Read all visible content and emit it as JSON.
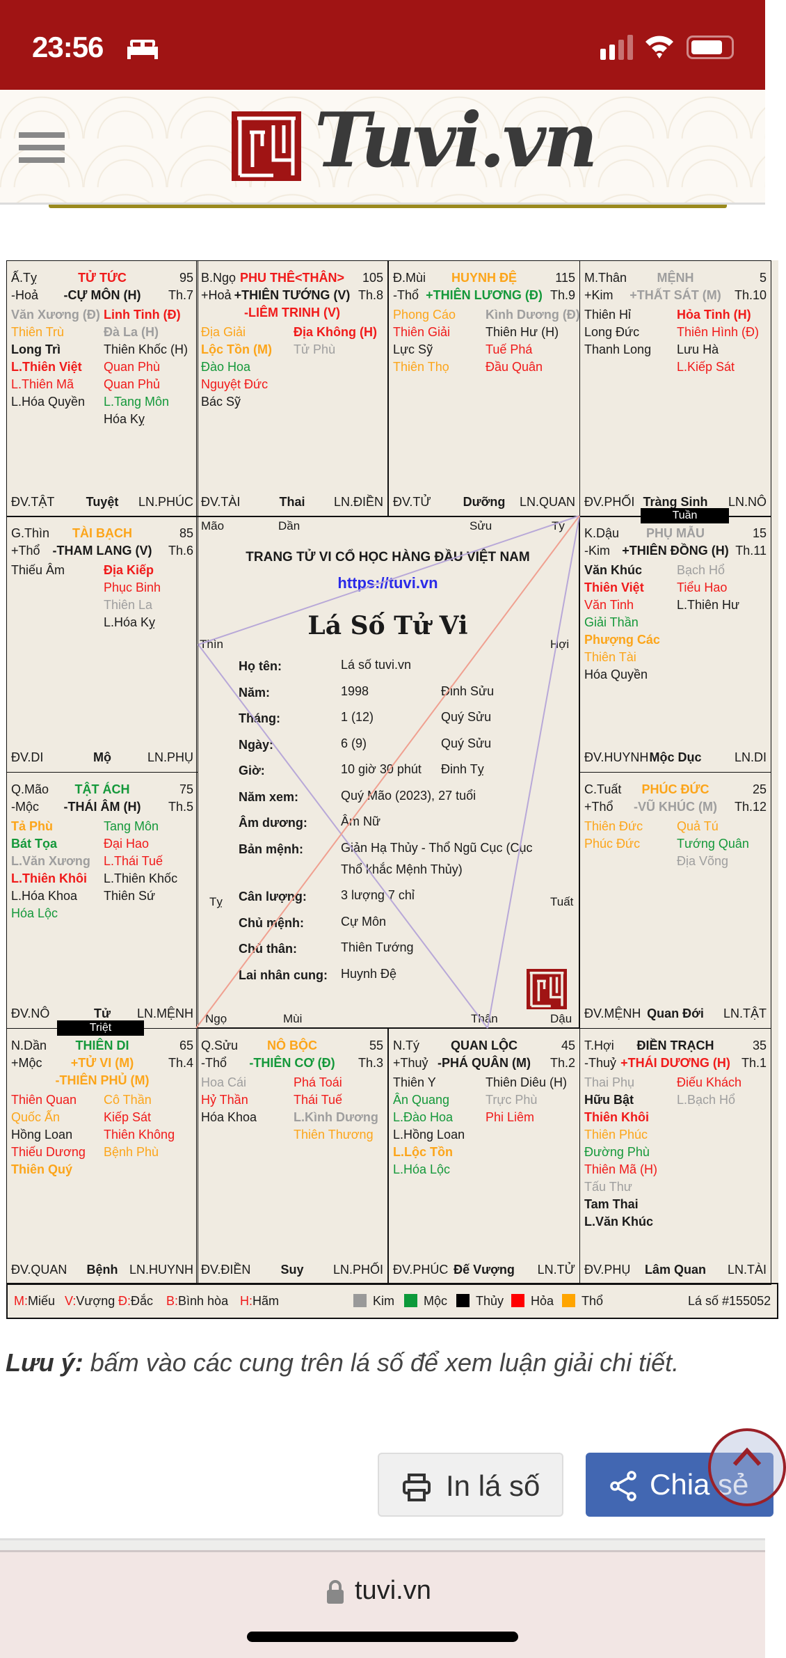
{
  "status_bar": {
    "time": "23:56"
  },
  "header": {
    "brand": "Tuvi.vn"
  },
  "colors": {
    "red": "#f01a1a",
    "orange": "#fca51a",
    "green": "#14983a",
    "gray": "#9e9e9e",
    "black": "#1a1a1a",
    "blue": "#2a2ae8",
    "brand_red": "#a01414",
    "share_blue": "#4267b2"
  },
  "palaces": [
    {
      "id": "ty-snake",
      "branch": "Ấ.Tỵ",
      "name": "TỬ TỨC",
      "name_color": "red",
      "age": "95",
      "element": "-Hoả",
      "main_stars": [
        {
          "n": "-CỰ MÔN (H)",
          "c": "black"
        }
      ],
      "month": "Th.7",
      "left": [
        {
          "n": "Văn Xương (Đ)",
          "c": "gray",
          "b": true
        },
        {
          "n": "Thiên Trù",
          "c": "orange"
        },
        {
          "n": "Long Trì",
          "c": "black",
          "b": true
        },
        {
          "n": "L.Thiên Việt",
          "c": "red",
          "b": true
        },
        {
          "n": "L.Thiên Mã",
          "c": "red"
        },
        {
          "n": "L.Hóa Quyền",
          "c": "black"
        }
      ],
      "right": [
        {
          "n": "Linh Tinh (Đ)",
          "c": "red",
          "b": true
        },
        {
          "n": "Đà La (H)",
          "c": "gray",
          "b": true
        },
        {
          "n": "Thiên Khốc (H)",
          "c": "black"
        },
        {
          "n": "Quan Phù",
          "c": "red"
        },
        {
          "n": "Quan Phủ",
          "c": "red"
        },
        {
          "n": "L.Tang Môn",
          "c": "green"
        },
        {
          "n": "Hóa Kỵ",
          "c": "black"
        }
      ],
      "dv": "ĐV.TẬT",
      "stage": "Tuyệt",
      "ln": "LN.PHÚC"
    },
    {
      "id": "ngo",
      "branch": "B.Ngọ",
      "name": "PHU THÊ<THÂN>",
      "name_color": "red",
      "age": "105",
      "element": "+Hoả",
      "main_stars": [
        {
          "n": "+THIÊN TƯỚNG (V)",
          "c": "black"
        },
        {
          "n": "-LIÊM TRINH (V)",
          "c": "red"
        }
      ],
      "month": "Th.8",
      "left": [
        {
          "n": "Địa Giải",
          "c": "orange"
        },
        {
          "n": "Lộc Tồn (M)",
          "c": "orange",
          "b": true
        },
        {
          "n": "Đào Hoa",
          "c": "green"
        },
        {
          "n": "Nguyệt Đức",
          "c": "red"
        },
        {
          "n": "Bác Sỹ",
          "c": "black"
        }
      ],
      "right": [
        {
          "n": "Địa Không (H)",
          "c": "red",
          "b": true
        },
        {
          "n": "Tử Phù",
          "c": "gray"
        }
      ],
      "dv": "ĐV.TÀI",
      "stage": "Thai",
      "ln": "LN.ĐIỀN"
    },
    {
      "id": "mui",
      "branch": "Đ.Mùi",
      "name": "HUYNH ĐỆ",
      "name_color": "orange",
      "age": "115",
      "element": "-Thổ",
      "main_stars": [
        {
          "n": "+THIÊN LƯƠNG (Đ)",
          "c": "green"
        }
      ],
      "month": "Th.9",
      "left": [
        {
          "n": "Phong Cáo",
          "c": "orange"
        },
        {
          "n": "Thiên Giải",
          "c": "red"
        },
        {
          "n": "Lực Sỹ",
          "c": "black"
        },
        {
          "n": "Thiên Thọ",
          "c": "orange"
        }
      ],
      "right": [
        {
          "n": "Kình Dương (Đ)",
          "c": "gray",
          "b": true
        },
        {
          "n": "Thiên Hư (H)",
          "c": "black"
        },
        {
          "n": "Tuế Phá",
          "c": "red"
        },
        {
          "n": "Đầu Quân",
          "c": "red"
        }
      ],
      "dv": "ĐV.TỬ",
      "stage": "Dưỡng",
      "ln": "LN.QUAN"
    },
    {
      "id": "than",
      "branch": "M.Thân",
      "name": "MỆNH",
      "name_color": "gray",
      "age": "5",
      "element": "+Kim",
      "main_stars": [
        {
          "n": "+THẤT SÁT (M)",
          "c": "gray"
        }
      ],
      "month": "Th.10",
      "left": [
        {
          "n": "Thiên Hỉ",
          "c": "black"
        },
        {
          "n": "Long Đức",
          "c": "black"
        },
        {
          "n": "Thanh Long",
          "c": "black"
        }
      ],
      "right": [
        {
          "n": "Hỏa Tinh (H)",
          "c": "red",
          "b": true
        },
        {
          "n": "Thiên Hình (Đ)",
          "c": "red"
        },
        {
          "n": "Lưu Hà",
          "c": "black"
        },
        {
          "n": "L.Kiếp Sát",
          "c": "red"
        }
      ],
      "dv": "ĐV.PHỐI",
      "stage": "Tràng Sinh",
      "ln": "LN.NÔ"
    },
    {
      "id": "thin",
      "branch": "G.Thìn",
      "name": "TÀI BẠCH",
      "name_color": "orange",
      "age": "85",
      "element": "+Thổ",
      "main_stars": [
        {
          "n": "-THAM LANG (V)",
          "c": "black"
        }
      ],
      "month": "Th.6",
      "left": [
        {
          "n": "Thiếu Âm",
          "c": "black"
        }
      ],
      "right": [
        {
          "n": "Địa Kiếp",
          "c": "red",
          "b": true
        },
        {
          "n": "Phục Binh",
          "c": "red"
        },
        {
          "n": "Thiên La",
          "c": "gray"
        },
        {
          "n": "L.Hóa Kỵ",
          "c": "black"
        }
      ],
      "dv": "ĐV.DI",
      "stage": "Mộ",
      "ln": "LN.PHỤ"
    },
    {
      "id": "dau",
      "branch": "K.Dậu",
      "name": "PHỤ MẪU",
      "name_color": "gray",
      "age": "15",
      "element": "-Kim",
      "main_stars": [
        {
          "n": "+THIÊN ĐỒNG (H)",
          "c": "black"
        }
      ],
      "month": "Th.11",
      "left": [
        {
          "n": "Văn Khúc",
          "c": "black",
          "b": true
        },
        {
          "n": "Thiên Việt",
          "c": "red",
          "b": true
        },
        {
          "n": "Văn Tinh",
          "c": "red"
        },
        {
          "n": "Giải Thần",
          "c": "green"
        },
        {
          "n": "Phượng Các",
          "c": "orange",
          "b": true
        },
        {
          "n": "Thiên Tài",
          "c": "orange"
        },
        {
          "n": "Hóa Quyền",
          "c": "black"
        }
      ],
      "right": [
        {
          "n": "Bạch Hổ",
          "c": "gray"
        },
        {
          "n": "Tiểu Hao",
          "c": "red"
        },
        {
          "n": "L.Thiên Hư",
          "c": "black"
        }
      ],
      "dv": "ĐV.HUYNH",
      "stage": "Mộc Dục",
      "ln": "LN.DI"
    },
    {
      "id": "mao",
      "branch": "Q.Mão",
      "name": "TẬT ÁCH",
      "name_color": "green",
      "age": "75",
      "element": "-Mộc",
      "main_stars": [
        {
          "n": "-THÁI ÂM (H)",
          "c": "black"
        }
      ],
      "month": "Th.5",
      "left": [
        {
          "n": "Tả Phù",
          "c": "orange",
          "b": true
        },
        {
          "n": "Bát Tọa",
          "c": "green",
          "b": true
        },
        {
          "n": "L.Văn Xương",
          "c": "gray",
          "b": true
        },
        {
          "n": "L.Thiên Khôi",
          "c": "red",
          "b": true
        },
        {
          "n": "L.Hóa Khoa",
          "c": "black"
        },
        {
          "n": "Hóa Lộc",
          "c": "green"
        }
      ],
      "right": [
        {
          "n": "Tang Môn",
          "c": "green"
        },
        {
          "n": "Đại Hao",
          "c": "red"
        },
        {
          "n": "L.Thái Tuế",
          "c": "red"
        },
        {
          "n": "L.Thiên Khốc",
          "c": "black"
        },
        {
          "n": "Thiên Sứ",
          "c": "black"
        }
      ],
      "dv": "ĐV.NÔ",
      "stage": "Tử",
      "ln": "LN.MỆNH"
    },
    {
      "id": "tuat",
      "branch": "C.Tuất",
      "name": "PHÚC ĐỨC",
      "name_color": "orange",
      "age": "25",
      "element": "+Thổ",
      "main_stars": [
        {
          "n": "-VŨ KHÚC (M)",
          "c": "gray"
        }
      ],
      "month": "Th.12",
      "left": [
        {
          "n": "Thiên Đức",
          "c": "orange"
        },
        {
          "n": "Phúc Đức",
          "c": "orange"
        }
      ],
      "right": [
        {
          "n": "Quả Tú",
          "c": "orange"
        },
        {
          "n": "Tướng Quân",
          "c": "green"
        },
        {
          "n": "Địa Võng",
          "c": "gray"
        }
      ],
      "dv": "ĐV.MỆNH",
      "stage": "Quan Đới",
      "ln": "LN.TẬT"
    },
    {
      "id": "dan",
      "branch": "N.Dần",
      "name": "THIÊN DI",
      "name_color": "green",
      "age": "65",
      "element": "+Mộc",
      "main_stars": [
        {
          "n": "+TỬ VI (M)",
          "c": "orange"
        },
        {
          "n": "-THIÊN PHỦ (M)",
          "c": "orange"
        }
      ],
      "month": "Th.4",
      "left": [
        {
          "n": "Thiên Quan",
          "c": "red"
        },
        {
          "n": "Quốc Ấn",
          "c": "orange"
        },
        {
          "n": "Hồng Loan",
          "c": "black"
        },
        {
          "n": "Thiếu Dương",
          "c": "red"
        },
        {
          "n": "Thiên Quý",
          "c": "orange",
          "b": true
        }
      ],
      "right": [
        {
          "n": "Cô Thần",
          "c": "orange"
        },
        {
          "n": "Kiếp Sát",
          "c": "red"
        },
        {
          "n": "Thiên Không",
          "c": "red"
        },
        {
          "n": "Bệnh Phù",
          "c": "orange"
        }
      ],
      "dv": "ĐV.QUAN",
      "stage": "Bệnh",
      "ln": "LN.HUYNH"
    },
    {
      "id": "suu",
      "branch": "Q.Sửu",
      "name": "NÔ BỘC",
      "name_color": "orange",
      "age": "55",
      "element": "-Thổ",
      "main_stars": [
        {
          "n": "-THIÊN CƠ (Đ)",
          "c": "green"
        }
      ],
      "month": "Th.3",
      "left": [
        {
          "n": "Hoa Cái",
          "c": "gray"
        },
        {
          "n": "Hỷ Thần",
          "c": "red"
        },
        {
          "n": "Hóa Khoa",
          "c": "black"
        }
      ],
      "right": [
        {
          "n": "Phá Toái",
          "c": "red"
        },
        {
          "n": "Thái Tuế",
          "c": "red"
        },
        {
          "n": "L.Kình Dương",
          "c": "gray",
          "b": true
        },
        {
          "n": "Thiên Thương",
          "c": "orange"
        }
      ],
      "dv": "ĐV.ĐIỀN",
      "stage": "Suy",
      "ln": "LN.PHỐI"
    },
    {
      "id": "ty-rat",
      "branch": "N.Tý",
      "name": "QUAN LỘC",
      "name_color": "black",
      "age": "45",
      "element": "+Thuỷ",
      "main_stars": [
        {
          "n": "-PHÁ QUÂN (M)",
          "c": "black"
        }
      ],
      "month": "Th.2",
      "left": [
        {
          "n": "Thiên Y",
          "c": "black"
        },
        {
          "n": "Ân Quang",
          "c": "green"
        },
        {
          "n": "L.Đào Hoa",
          "c": "green"
        },
        {
          "n": "L.Hồng Loan",
          "c": "black"
        },
        {
          "n": "L.Lộc Tồn",
          "c": "orange",
          "b": true
        },
        {
          "n": "L.Hóa Lộc",
          "c": "green"
        }
      ],
      "right": [
        {
          "n": "Thiên Diêu (H)",
          "c": "black"
        },
        {
          "n": "Trực Phù",
          "c": "gray"
        },
        {
          "n": "Phi Liêm",
          "c": "red"
        }
      ],
      "dv": "ĐV.PHÚC",
      "stage": "Đế Vượng",
      "ln": "LN.TỬ"
    },
    {
      "id": "hoi",
      "branch": "T.Hợi",
      "name": "ĐIỀN TRẠCH",
      "name_color": "black",
      "age": "35",
      "element": "-Thuỷ",
      "main_stars": [
        {
          "n": "+THÁI DƯƠNG (H)",
          "c": "red"
        }
      ],
      "month": "Th.1",
      "left": [
        {
          "n": "Thai Phụ",
          "c": "gray"
        },
        {
          "n": "Hữu Bật",
          "c": "black",
          "b": true
        },
        {
          "n": "Thiên Khôi",
          "c": "red",
          "b": true
        },
        {
          "n": "Thiên Phúc",
          "c": "orange"
        },
        {
          "n": "Đường Phù",
          "c": "green"
        },
        {
          "n": "Thiên Mã (H)",
          "c": "red"
        },
        {
          "n": "Tấu Thư",
          "c": "gray"
        },
        {
          "n": "Tam Thai",
          "c": "black",
          "b": true
        },
        {
          "n": "L.Văn Khúc",
          "c": "black",
          "b": true
        }
      ],
      "right": [
        {
          "n": "Điếu Khách",
          "c": "red"
        },
        {
          "n": "L.Bạch Hổ",
          "c": "gray"
        }
      ],
      "dv": "ĐV.PHỤ",
      "stage": "Lâm Quan",
      "ln": "LN.TÀI"
    }
  ],
  "tags": {
    "tuan": "Tuần",
    "triet": "Triệt"
  },
  "center": {
    "branches": {
      "mao": "Mão",
      "dan": "Dần",
      "suu": "Sửu",
      "ty_rat": "Tý",
      "thin": "Thìn",
      "hoi": "Hợi",
      "ty_snake": "Tỵ",
      "tuat": "Tuất",
      "ngo": "Ngọ",
      "mui": "Mùi",
      "than": "Thân",
      "dau": "Dậu"
    },
    "slogan": "TRANG TỬ VI CỔ HỌC HÀNG ĐẦU VIỆT NAM",
    "url": "https://tuvi.vn",
    "title": "Lá Số Tử Vi",
    "info": [
      {
        "label": "Họ tên:",
        "value": "Lá số tuvi.vn",
        "extra": ""
      },
      {
        "label": "Năm:",
        "value": "1998",
        "extra": "Đinh Sửu"
      },
      {
        "label": "Tháng:",
        "value": "1 (12)",
        "extra": "Quý Sửu"
      },
      {
        "label": "Ngày:",
        "value": "6 (9)",
        "extra": "Quý Sửu"
      },
      {
        "label": "Giờ:",
        "value": "10 giờ 30 phút",
        "extra": "Đinh Tỵ"
      },
      {
        "label": "Năm xem:",
        "value": "Quý Mão (2023), 27 tuổi",
        "extra": ""
      },
      {
        "label": "Âm dương:",
        "value": "Âm Nữ",
        "extra": ""
      },
      {
        "label": "Bản mệnh:",
        "value": "Giản Hạ Thủy - Thổ Ngũ Cục (Cục",
        "value2": "Thổ khắc Mệnh Thủy)",
        "extra": ""
      },
      {
        "label": "Cân lượng:",
        "value": "3 lượng 7 chỉ",
        "extra": ""
      },
      {
        "label": "Chủ mệnh:",
        "value": "Cự Môn",
        "extra": ""
      },
      {
        "label": "Chủ thân:",
        "value": "Thiên Tướng",
        "extra": ""
      },
      {
        "label": "Lai nhân cung:",
        "value": "Huynh Đệ",
        "extra": ""
      }
    ]
  },
  "legend": {
    "brightness": [
      {
        "k": "M:",
        "v": "Miếu"
      },
      {
        "k": "V:",
        "v": "Vượng"
      },
      {
        "k": "Đ:",
        "v": "Đắc"
      },
      {
        "k": "B:",
        "v": "Bình hòa"
      },
      {
        "k": "H:",
        "v": "Hãm"
      }
    ],
    "elements": [
      {
        "name": "Kim",
        "color": "#999999"
      },
      {
        "name": "Mộc",
        "color": "#0c9a3a"
      },
      {
        "name": "Thủy",
        "color": "#000000"
      },
      {
        "name": "Hỏa",
        "color": "#ff0000"
      },
      {
        "name": "Thổ",
        "color": "#ffa500"
      }
    ],
    "chart_id": "Lá số #155052"
  },
  "note": {
    "bold": "Lưu ý:",
    "text": " bấm vào các cung trên lá số để xem luận giải chi tiết."
  },
  "buttons": {
    "print": "In lá số",
    "share": "Chia sẻ"
  },
  "browser": {
    "url": "tuvi.vn"
  }
}
